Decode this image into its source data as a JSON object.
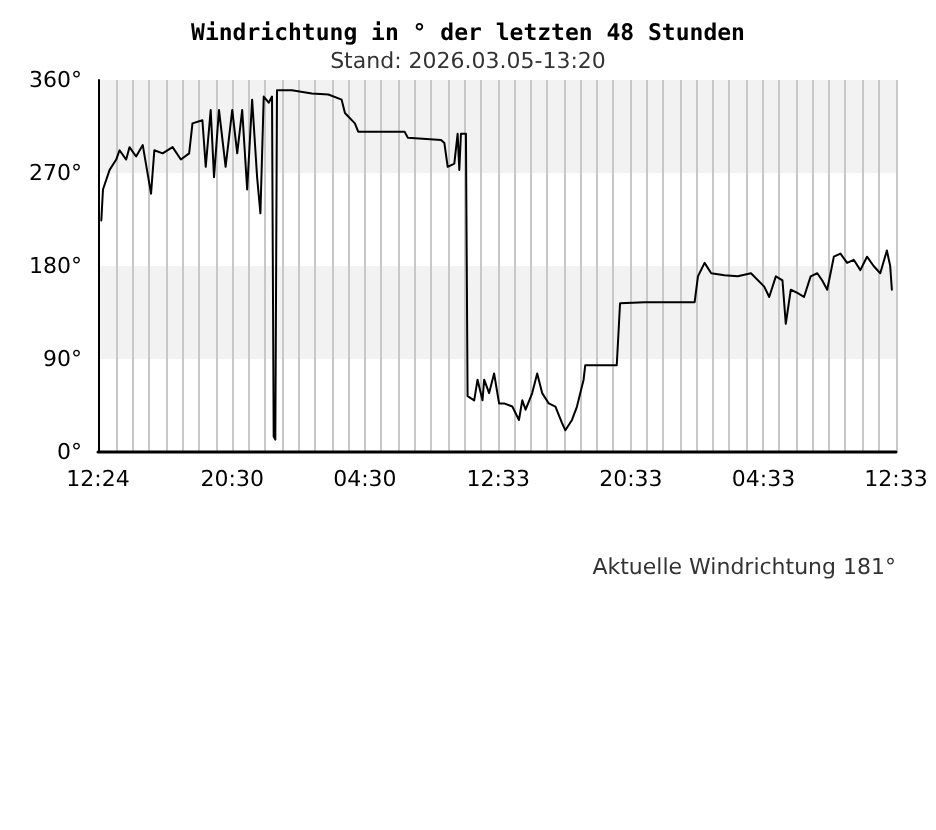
{
  "chart_data": {
    "type": "line",
    "title": "Windrichtung in ° der letzten 48 Stunden",
    "subtitle": "Stand: 2026.03.05-13:20",
    "annotations": [
      "Aktuelle Windrichtung 181°"
    ],
    "x": [
      "2026-03-03T12:36",
      "2026-03-03T12:42",
      "2026-03-03T13:06",
      "2026-03-03T13:30",
      "2026-03-03T13:42",
      "2026-03-03T14:06",
      "2026-03-03T14:18",
      "2026-03-03T14:42",
      "2026-03-03T15:06",
      "2026-03-03T15:36",
      "2026-03-03T15:48",
      "2026-03-03T16:18",
      "2026-03-03T16:54",
      "2026-03-03T17:24",
      "2026-03-03T17:54",
      "2026-03-03T18:06",
      "2026-03-03T18:42",
      "2026-03-03T18:54",
      "2026-03-03T19:12",
      "2026-03-03T19:24",
      "2026-03-03T19:42",
      "2026-03-03T20:06",
      "2026-03-03T20:30",
      "2026-03-03T20:48",
      "2026-03-03T21:06",
      "2026-03-03T21:24",
      "2026-03-03T21:42",
      "2026-03-03T22:00",
      "2026-03-03T22:12",
      "2026-03-03T22:24",
      "2026-03-03T22:42",
      "2026-03-03T22:54",
      "2026-03-03T23:00",
      "2026-03-03T23:06",
      "2026-03-03T23:12",
      "2026-03-04T00:06",
      "2026-03-04T01:18",
      "2026-03-04T02:18",
      "2026-03-04T03:06",
      "2026-03-04T03:18",
      "2026-03-04T03:54",
      "2026-03-04T04:06",
      "2026-03-04T06:54",
      "2026-03-04T07:06",
      "2026-03-04T09:06",
      "2026-03-04T09:18",
      "2026-03-04T09:30",
      "2026-03-04T09:54",
      "2026-03-04T10:06",
      "2026-03-04T10:12",
      "2026-03-04T10:18",
      "2026-03-04T10:36",
      "2026-03-04T10:42",
      "2026-03-04T11:06",
      "2026-03-04T11:18",
      "2026-03-04T11:36",
      "2026-03-04T11:42",
      "2026-03-04T12:00",
      "2026-03-04T12:18",
      "2026-03-04T12:36",
      "2026-03-04T12:54",
      "2026-03-04T13:24",
      "2026-03-04T13:48",
      "2026-03-04T14:00",
      "2026-03-04T14:12",
      "2026-03-04T14:36",
      "2026-03-04T14:54",
      "2026-03-04T15:12",
      "2026-03-04T15:36",
      "2026-03-04T16:00",
      "2026-03-04T16:24",
      "2026-03-04T16:36",
      "2026-03-04T17:00",
      "2026-03-04T17:18",
      "2026-03-04T17:42",
      "2026-03-04T17:48",
      "2026-03-04T19:42",
      "2026-03-04T19:54",
      "2026-03-04T21:24",
      "2026-03-04T22:12",
      "2026-03-05T00:24",
      "2026-03-05T00:36",
      "2026-03-05T01:00",
      "2026-03-05T01:24",
      "2026-03-05T02:12",
      "2026-03-05T03:00",
      "2026-03-05T03:48",
      "2026-03-05T04:36",
      "2026-03-05T04:54",
      "2026-03-05T05:18",
      "2026-03-05T05:42",
      "2026-03-05T05:54",
      "2026-03-05T06:12",
      "2026-03-05T06:36",
      "2026-03-05T07:00",
      "2026-03-05T07:24",
      "2026-03-05T07:48",
      "2026-03-05T08:06",
      "2026-03-05T08:24",
      "2026-03-05T08:48",
      "2026-03-05T09:12",
      "2026-03-05T09:36",
      "2026-03-05T10:00",
      "2026-03-05T10:24",
      "2026-03-05T10:48",
      "2026-03-05T11:12",
      "2026-03-05T11:36",
      "2026-03-05T12:00",
      "2026-03-05T12:12",
      "2026-03-05T12:18"
    ],
    "series": [
      {
        "color": "#000000",
        "values": [
          224,
          254,
          273,
          283,
          292,
          283,
          295,
          286,
          297,
          250,
          292,
          289,
          295,
          283,
          289,
          318,
          321,
          276,
          331,
          266,
          331,
          276,
          331,
          289,
          331,
          254,
          341,
          266,
          231,
          344,
          338,
          344,
          15,
          12,
          350,
          350,
          347,
          346,
          341,
          328,
          318,
          310,
          310,
          304,
          302,
          299,
          276,
          279,
          308,
          273,
          308,
          308,
          54,
          50,
          70,
          50,
          70,
          57,
          76,
          47,
          47,
          44,
          31,
          50,
          41,
          57,
          76,
          57,
          47,
          44,
          28,
          21,
          31,
          44,
          70,
          84,
          84,
          144,
          145,
          145,
          145,
          170,
          183,
          173,
          171,
          170,
          173,
          160,
          150,
          170,
          166,
          124,
          157,
          154,
          150,
          170,
          173,
          166,
          157,
          189,
          192,
          183,
          186,
          176,
          189,
          180,
          173,
          195,
          180,
          157
        ]
      }
    ],
    "xlim": [
      "2026-03-03T12:24",
      "2026-03-05T12:33"
    ],
    "xticks": [
      {
        "value": "2026-03-03T12:24",
        "label": "12:24"
      },
      {
        "value": "2026-03-03T13:30",
        "label": null
      },
      {
        "value": "2026-03-03T14:30",
        "label": null
      },
      {
        "value": "2026-03-03T15:30",
        "label": null
      },
      {
        "value": "2026-03-03T16:30",
        "label": null
      },
      {
        "value": "2026-03-03T17:30",
        "label": null
      },
      {
        "value": "2026-03-03T18:30",
        "label": null
      },
      {
        "value": "2026-03-03T19:30",
        "label": null
      },
      {
        "value": "2026-03-03T20:30",
        "label": "20:30"
      },
      {
        "value": "2026-03-03T21:30",
        "label": null
      },
      {
        "value": "2026-03-03T22:30",
        "label": null
      },
      {
        "value": "2026-03-03T23:30",
        "label": null
      },
      {
        "value": "2026-03-04T00:30",
        "label": null
      },
      {
        "value": "2026-03-04T01:30",
        "label": null
      },
      {
        "value": "2026-03-04T02:30",
        "label": null
      },
      {
        "value": "2026-03-04T03:30",
        "label": null
      },
      {
        "value": "2026-03-04T04:30",
        "label": "04:30"
      },
      {
        "value": "2026-03-04T05:30",
        "label": null
      },
      {
        "value": "2026-03-04T06:30",
        "label": null
      },
      {
        "value": "2026-03-04T07:30",
        "label": null
      },
      {
        "value": "2026-03-04T08:30",
        "label": null
      },
      {
        "value": "2026-03-04T09:30",
        "label": null
      },
      {
        "value": "2026-03-04T10:30",
        "label": null
      },
      {
        "value": "2026-03-04T11:30",
        "label": null
      },
      {
        "value": "2026-03-04T12:33",
        "label": "12:33"
      },
      {
        "value": "2026-03-04T13:30",
        "label": null
      },
      {
        "value": "2026-03-04T14:30",
        "label": null
      },
      {
        "value": "2026-03-04T15:30",
        "label": null
      },
      {
        "value": "2026-03-04T16:30",
        "label": null
      },
      {
        "value": "2026-03-04T17:30",
        "label": null
      },
      {
        "value": "2026-03-04T18:30",
        "label": null
      },
      {
        "value": "2026-03-04T19:30",
        "label": null
      },
      {
        "value": "2026-03-04T20:33",
        "label": "20:33"
      },
      {
        "value": "2026-03-04T21:30",
        "label": null
      },
      {
        "value": "2026-03-04T22:30",
        "label": null
      },
      {
        "value": "2026-03-04T23:30",
        "label": null
      },
      {
        "value": "2026-03-05T00:30",
        "label": null
      },
      {
        "value": "2026-03-05T01:30",
        "label": null
      },
      {
        "value": "2026-03-05T02:30",
        "label": null
      },
      {
        "value": "2026-03-05T03:30",
        "label": null
      },
      {
        "value": "2026-03-05T04:33",
        "label": "04:33"
      },
      {
        "value": "2026-03-05T05:30",
        "label": null
      },
      {
        "value": "2026-03-05T06:30",
        "label": null
      },
      {
        "value": "2026-03-05T07:30",
        "label": null
      },
      {
        "value": "2026-03-05T08:30",
        "label": null
      },
      {
        "value": "2026-03-05T09:30",
        "label": null
      },
      {
        "value": "2026-03-05T10:30",
        "label": null
      },
      {
        "value": "2026-03-05T11:30",
        "label": null
      },
      {
        "value": "2026-03-05T12:33",
        "label": "12:33"
      }
    ],
    "ylim": [
      0,
      360
    ],
    "yticks": [
      {
        "value": 0,
        "label": "0°"
      },
      {
        "value": 90,
        "label": "90°"
      },
      {
        "value": 180,
        "label": "180°"
      },
      {
        "value": 270,
        "label": "270°"
      },
      {
        "value": 360,
        "label": "360°"
      }
    ],
    "bands": [
      {
        "axis": "y",
        "from": 270,
        "to": 360,
        "color": "#f2f2f2"
      },
      {
        "axis": "y",
        "from": 90,
        "to": 180,
        "color": "#f2f2f2"
      }
    ],
    "grid": "x",
    "marker": "none",
    "line_style": "solid"
  }
}
